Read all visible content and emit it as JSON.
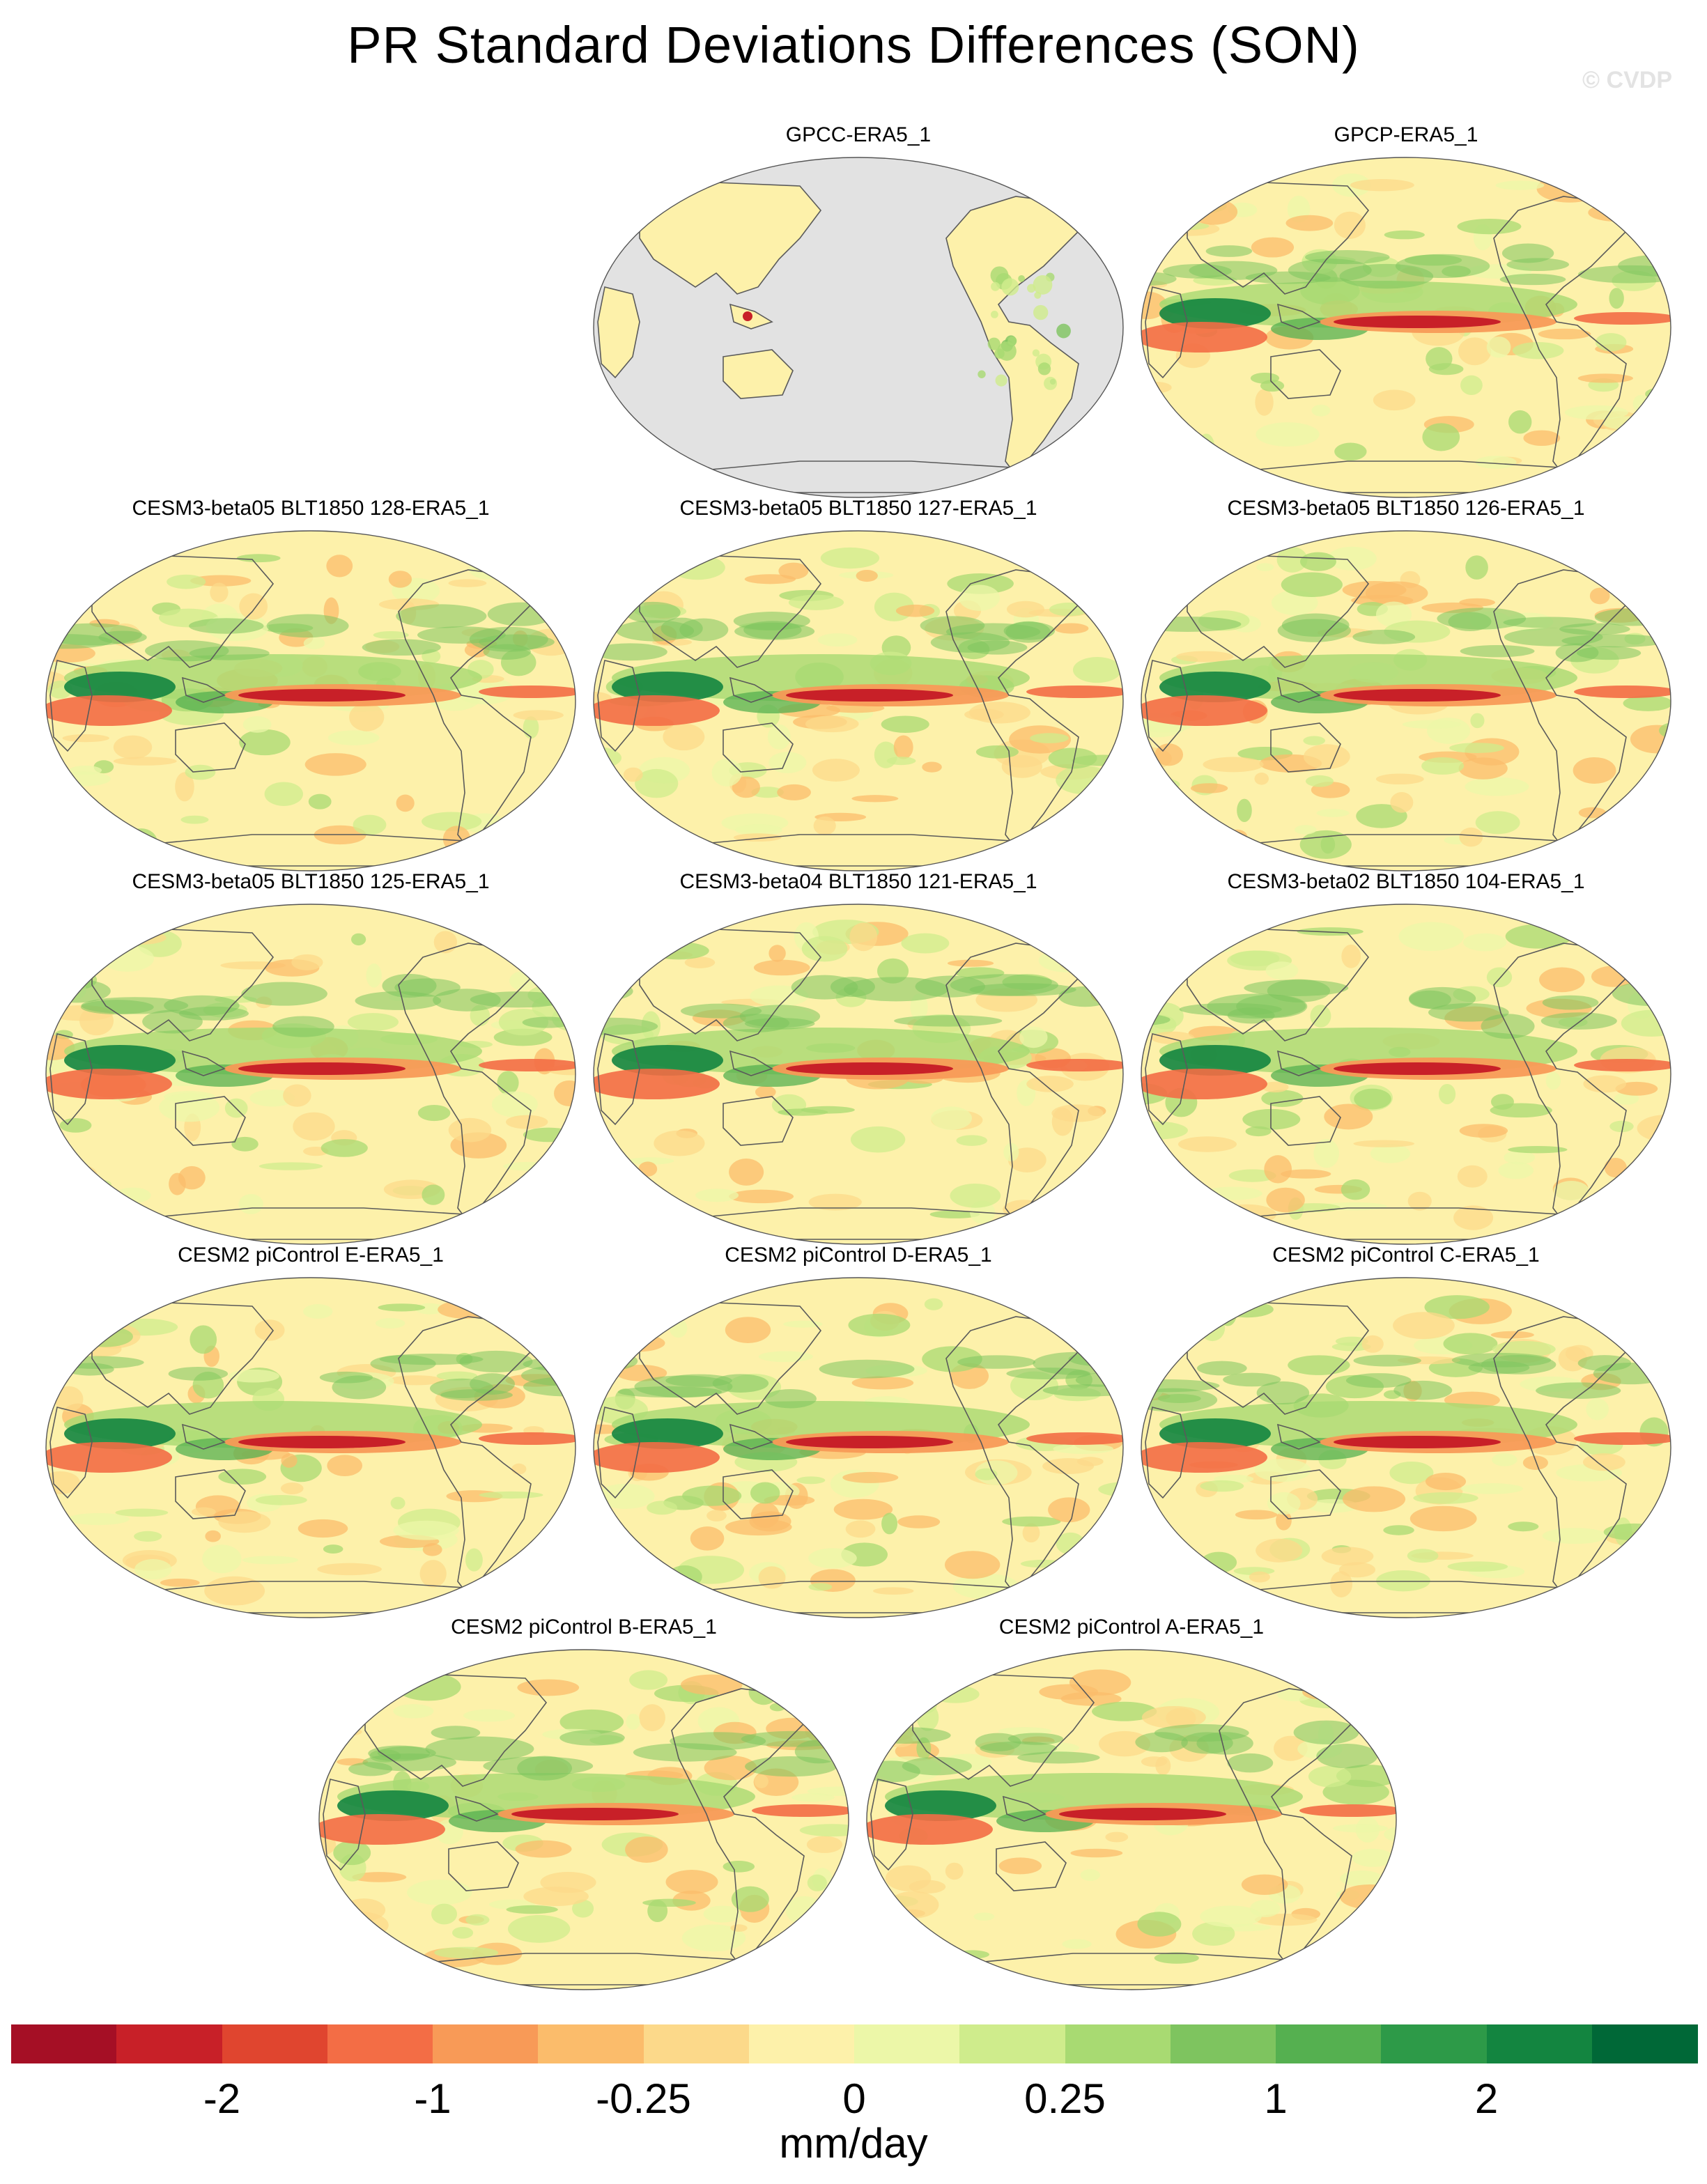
{
  "title": "PR Standard Deviations Differences (SON)",
  "watermark": "© CVDP",
  "chart_data": {
    "type": "heatmap",
    "title": "PR Standard Deviations Differences (SON)",
    "projection": "global map, Pacific-centered",
    "panels": [
      {
        "name": "GPCC-ERA5_1",
        "land_only": true
      },
      {
        "name": "GPCP-ERA5_1",
        "land_only": false
      },
      {
        "name": "CESM3-beta05 BLT1850 128-ERA5_1",
        "land_only": false
      },
      {
        "name": "CESM3-beta05 BLT1850 127-ERA5_1",
        "land_only": false
      },
      {
        "name": "CESM3-beta05 BLT1850 126-ERA5_1",
        "land_only": false
      },
      {
        "name": "CESM3-beta05 BLT1850 125-ERA5_1",
        "land_only": false
      },
      {
        "name": "CESM3-beta04 BLT1850 121-ERA5_1",
        "land_only": false
      },
      {
        "name": "CESM3-beta02 BLT1850 104-ERA5_1",
        "land_only": false
      },
      {
        "name": "CESM2 piControl E-ERA5_1",
        "land_only": false
      },
      {
        "name": "CESM2 piControl D-ERA5_1",
        "land_only": false
      },
      {
        "name": "CESM2 piControl C-ERA5_1",
        "land_only": false
      },
      {
        "name": "CESM2 piControl B-ERA5_1",
        "land_only": false
      },
      {
        "name": "CESM2 piControl A-ERA5_1",
        "land_only": false
      }
    ],
    "colorbar": {
      "units": "mm/day",
      "labels": [
        "-2",
        "-1",
        "-0.25",
        "0",
        "0.25",
        "1",
        "2"
      ],
      "colors": [
        "#a50f25",
        "#c82028",
        "#e0452f",
        "#f36d45",
        "#f89a57",
        "#fbbc6b",
        "#fcd98a",
        "#fdf1aa",
        "#ecf7a8",
        "#cfec8c",
        "#a8da72",
        "#7ec45f",
        "#55b050",
        "#2d9a48",
        "#138540",
        "#006837"
      ]
    }
  },
  "colors": {
    "ocean_missing": "#e2e2e2",
    "coast": "#5a5a5a",
    "background_positive": "#fdf1aa"
  }
}
